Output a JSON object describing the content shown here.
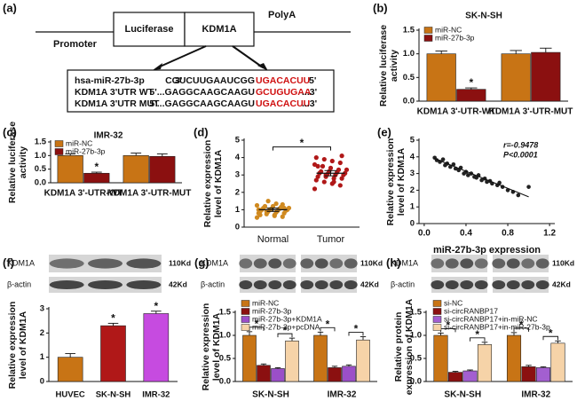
{
  "diagram": {
    "panel": "(a)",
    "promoter": "Promoter",
    "boxes": [
      "Luciferase",
      "KDM1A"
    ],
    "polya": "PolyA",
    "rows": [
      {
        "name": "hsa-miR-27b-3p",
        "left": "3'",
        "seq": "CGUCUUGAAUCGG",
        "site": "UGACACUU",
        "right": "5'"
      },
      {
        "name": "KDM1A 3'UTR WT",
        "seq": "5'...GAGGCAAGCAAGU",
        "site": "GCUGUGAA",
        "right": "...3'"
      },
      {
        "name": "KDM1A 3'UTR MUT",
        "seq": "5'...GAGGCAAGCAAGU",
        "site": "UGACACUU",
        "right": "...3'"
      }
    ]
  },
  "chart_data": [
    {
      "type": "bar",
      "panel": "(b)",
      "title": "SK-N-SH",
      "ylabel": [
        "Relative luciferase",
        "activity"
      ],
      "categories": [
        "KDM1A 3'-UTR-WT",
        "KDM1A 3'-UTR-MUT"
      ],
      "series": [
        {
          "name": "miR-NC",
          "color": "#c87415",
          "values": [
            1.0,
            1.0
          ],
          "errors": [
            0.06,
            0.07
          ]
        },
        {
          "name": "miR-27b-3p",
          "color": "#8b1010",
          "values": [
            0.25,
            1.03
          ],
          "errors": [
            0.03,
            0.09
          ]
        }
      ],
      "ylim": [
        0,
        1.5
      ],
      "yticks": [
        {
          "value": 0,
          "label": "0.0"
        },
        0.5,
        {
          "value": 1,
          "label": "1.0"
        },
        1.5
      ],
      "annotations": [
        {
          "text": "*",
          "category": 0,
          "series": 1
        }
      ]
    },
    {
      "type": "bar",
      "panel": "(c)",
      "title": "IMR-32",
      "ylabel": [
        "Relative  luciferase",
        "activity"
      ],
      "categories": [
        "KDM1A 3'-UTR-WT",
        "KDM1A 3'-UTR-MUT"
      ],
      "series": [
        {
          "name": "miR-NC",
          "color": "#c87415",
          "values": [
            1.0,
            1.0
          ],
          "errors": [
            0.06,
            0.09
          ]
        },
        {
          "name": "miR-27b-3p",
          "color": "#8b1010",
          "values": [
            0.35,
            0.97
          ],
          "errors": [
            0.04,
            0.09
          ]
        }
      ],
      "ylim": [
        0,
        1.5
      ],
      "yticks": [
        {
          "value": 0,
          "label": "0.0"
        },
        0.5,
        {
          "value": 1,
          "label": "1.0"
        },
        1.5
      ],
      "annotations": [
        {
          "text": "*",
          "category": 0,
          "series": 1
        }
      ]
    },
    {
      "type": "dot",
      "panel": "(d)",
      "ylabel": [
        "Relative expression",
        "level of KDM1A"
      ],
      "categories": [
        "Normal",
        "Tumor"
      ],
      "colors": [
        "#d08a20",
        "#b01818"
      ],
      "values": [
        [
          0.55,
          0.6,
          0.7,
          0.75,
          0.8,
          0.8,
          0.85,
          0.9,
          0.9,
          0.95,
          0.95,
          1.0,
          1.0,
          1.0,
          1.05,
          1.05,
          1.1,
          1.1,
          1.15,
          1.2,
          1.2,
          1.25,
          1.3,
          0.65,
          0.9,
          1.0,
          1.1,
          1.35,
          1.5,
          0.7
        ],
        [
          2.2,
          2.4,
          2.5,
          2.6,
          2.7,
          2.8,
          2.8,
          2.9,
          2.9,
          3.0,
          3.0,
          3.05,
          3.1,
          3.1,
          3.15,
          3.2,
          3.2,
          3.3,
          3.3,
          3.4,
          3.5,
          3.6,
          3.7,
          3.8,
          3.9,
          4.0,
          4.1,
          2.6,
          3.0,
          3.5
        ]
      ],
      "means": [
        1.0,
        3.1
      ],
      "errors": [
        0.1,
        0.15
      ],
      "ylim": [
        0,
        5
      ],
      "yticks": [
        0,
        1,
        2,
        3,
        4,
        5
      ],
      "annotations": [
        {
          "text": "*",
          "from_category": 0,
          "to_category": 1
        }
      ]
    },
    {
      "type": "scatter",
      "panel": "(e)",
      "ylabel": [
        "Relative expression",
        "level of KDM1A"
      ],
      "xlabel": "miR-27b-3p expression",
      "color": "#222222",
      "x": [
        0.1,
        0.12,
        0.15,
        0.18,
        0.2,
        0.22,
        0.25,
        0.28,
        0.3,
        0.33,
        0.35,
        0.38,
        0.4,
        0.42,
        0.45,
        0.48,
        0.5,
        0.52,
        0.55,
        0.58,
        0.6,
        0.63,
        0.65,
        0.7,
        0.72,
        0.75,
        0.8,
        0.85,
        0.9,
        1.0
      ],
      "y": [
        3.95,
        3.8,
        3.7,
        3.85,
        3.5,
        3.6,
        3.4,
        3.55,
        3.3,
        3.2,
        3.35,
        3.0,
        3.1,
        2.9,
        3.0,
        2.8,
        2.75,
        2.9,
        2.6,
        2.7,
        2.5,
        2.55,
        2.4,
        2.3,
        2.45,
        2.2,
        2.0,
        1.9,
        1.7,
        2.2
      ],
      "fit_x": [
        0.1,
        1.0
      ],
      "fit_y": [
        3.9,
        1.6
      ],
      "xlim": [
        -0.05,
        1.25
      ],
      "xticks": [
        {
          "value": 0,
          "label": "0.0"
        },
        0.4,
        0.8,
        1.2
      ],
      "ylim": [
        0,
        5
      ],
      "yticks": [
        0,
        1,
        2,
        3,
        4,
        5
      ],
      "annotations": [
        "r=-0.9478",
        "P<0.0001"
      ]
    },
    {
      "type": "bar",
      "panel": "(f)",
      "ylabel": [
        "Relative expression",
        "level of KDM1A"
      ],
      "blot_labels": [
        "KDM1A",
        "β-actin"
      ],
      "blot_sizes": [
        "110Kd",
        "42Kd"
      ],
      "categories": [
        "HUVEC",
        "SK-N-SH",
        "IMR-32"
      ],
      "colors": [
        "#c87415",
        "#b01818",
        "#c64be0"
      ],
      "values": [
        1.0,
        2.3,
        2.8
      ],
      "errors": [
        0.15,
        0.1,
        0.1
      ],
      "ylim": [
        0,
        3
      ],
      "yticks": [
        0,
        1,
        2,
        3
      ],
      "annotations": [
        {
          "text": "*",
          "category": 1,
          "series": 0
        },
        {
          "text": "*",
          "category": 2,
          "series": 0
        }
      ]
    },
    {
      "type": "bar",
      "panel": "(g)",
      "ylabel": [
        "Relative expression",
        "level of KDM1A"
      ],
      "blot_labels": [
        "KDM1A",
        "β-actin"
      ],
      "blot_sizes": [
        "110Kd",
        "42Kd"
      ],
      "categories": [
        "SK-N-SH",
        "IMR-32"
      ],
      "series": [
        {
          "name": "miR-NC",
          "color": "#c87415",
          "values": [
            1.0,
            1.0
          ],
          "errors": [
            0.08,
            0.07
          ]
        },
        {
          "name": "miR-27b-3p",
          "color": "#8b1010",
          "values": [
            0.35,
            0.3
          ],
          "errors": [
            0.03,
            0.03
          ]
        },
        {
          "name": "miR-27b-3p+KDM1A",
          "color": "#9b4fc8",
          "values": [
            0.28,
            0.33
          ],
          "errors": [
            0.02,
            0.03
          ]
        },
        {
          "name": "miR-27b-3p+pcDNA",
          "color": "#f6d3a8",
          "values": [
            0.88,
            0.9
          ],
          "errors": [
            0.06,
            0.07
          ]
        }
      ],
      "ylim": [
        0,
        1.5
      ],
      "yticks": [
        {
          "value": 0,
          "label": "0.0"
        },
        0.5,
        {
          "value": 1,
          "label": "1.0"
        },
        1.5
      ],
      "annotations": [
        {
          "text": "*",
          "category": 0,
          "series": 0,
          "to_series": 1
        },
        {
          "text": "*",
          "category": 0,
          "series": 2,
          "to_series": 3
        },
        {
          "text": "*",
          "category": 1,
          "series": 0,
          "to_series": 1
        },
        {
          "text": "*",
          "category": 1,
          "series": 2,
          "to_series": 3
        }
      ]
    },
    {
      "type": "bar",
      "panel": "(h)",
      "ylabel": [
        "Relative protein",
        "expression of KDM1A"
      ],
      "blot_labels": [
        "KDM1A",
        "β-actin"
      ],
      "blot_sizes": [
        "110Kd",
        "42Kd"
      ],
      "categories": [
        "SK-N-SH",
        "IMR-32"
      ],
      "series": [
        {
          "name": "si-NC",
          "color": "#c87415",
          "values": [
            1.0,
            1.0
          ],
          "errors": [
            0.05,
            0.06
          ]
        },
        {
          "name": "si-circRANBP17",
          "color": "#8b1010",
          "values": [
            0.2,
            0.32
          ],
          "errors": [
            0.02,
            0.03
          ]
        },
        {
          "name": "si-circRANBP17+in-miR-NC",
          "color": "#a35fd0",
          "values": [
            0.23,
            0.3
          ],
          "errors": [
            0.02,
            0.02
          ]
        },
        {
          "name": "si-circRANBP17+in-miR-27b-3p",
          "color": "#f6d3a8",
          "values": [
            0.8,
            0.83
          ],
          "errors": [
            0.05,
            0.05
          ]
        }
      ],
      "ylim": [
        0,
        1.5
      ],
      "yticks": [
        {
          "value": 0,
          "label": "0.0"
        },
        0.5,
        {
          "value": 1,
          "label": "1.0"
        },
        1.5
      ],
      "annotations": [
        {
          "text": "*",
          "category": 0,
          "series": 0,
          "to_series": 1
        },
        {
          "text": "*",
          "category": 0,
          "series": 2,
          "to_series": 3
        },
        {
          "text": "*",
          "category": 1,
          "series": 0,
          "to_series": 1
        },
        {
          "text": "*",
          "category": 1,
          "series": 2,
          "to_series": 3
        }
      ]
    }
  ]
}
